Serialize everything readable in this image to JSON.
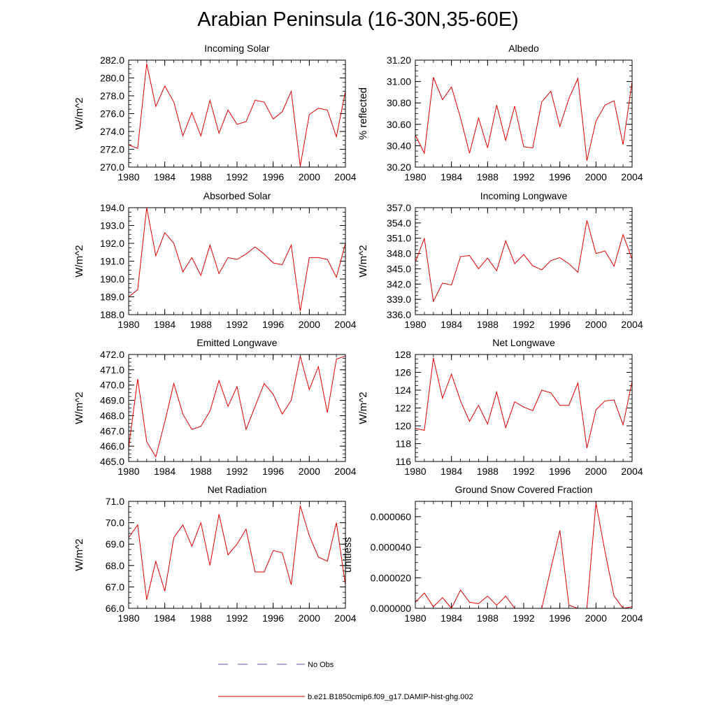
{
  "title": "Arabian Peninsula (16-30N,35-60E)",
  "series_name": "b.e21.B1850cmip6.f09_g17.DAMIP-hist-ghg.002",
  "obs_label": "No Obs",
  "series_color": "#e00000",
  "obs_color": "#5a5ad0",
  "chart_data": [
    {
      "type": "line",
      "title": "Incoming Solar",
      "ylabel": "W/m^2",
      "x": [
        1980,
        1981,
        1982,
        1983,
        1984,
        1985,
        1986,
        1987,
        1988,
        1989,
        1990,
        1991,
        1992,
        1993,
        1994,
        1995,
        1996,
        1997,
        1998,
        1999,
        2000,
        2001,
        2002,
        2003,
        2004
      ],
      "values": [
        272.5,
        272.1,
        281.6,
        276.8,
        279.1,
        277.3,
        273.5,
        276.1,
        273.5,
        277.5,
        273.8,
        276.4,
        274.8,
        275.1,
        277.5,
        277.3,
        275.4,
        276.2,
        278.5,
        270.1,
        275.9,
        276.6,
        276.4,
        273.4,
        278.5
      ],
      "xlim": [
        1980,
        2004
      ],
      "ylim": [
        270.0,
        282.0
      ],
      "xticks": [
        "1980",
        "1984",
        "1988",
        "1992",
        "1996",
        "2000",
        "2004"
      ],
      "yticks": [
        "270.0",
        "272.0",
        "274.0",
        "276.0",
        "278.0",
        "280.0",
        "282.0"
      ]
    },
    {
      "type": "line",
      "title": "Albedo",
      "ylabel": "% reflected",
      "x": [
        1980,
        1981,
        1982,
        1983,
        1984,
        1985,
        1986,
        1987,
        1988,
        1989,
        1990,
        1991,
        1992,
        1993,
        1994,
        1995,
        1996,
        1997,
        1998,
        1999,
        2000,
        2001,
        2002,
        2003,
        2004
      ],
      "values": [
        30.5,
        30.33,
        31.04,
        30.83,
        30.95,
        30.66,
        30.33,
        30.66,
        30.38,
        30.78,
        30.45,
        30.77,
        30.39,
        30.38,
        30.81,
        30.91,
        30.58,
        30.84,
        31.03,
        30.26,
        30.63,
        30.78,
        30.82,
        30.41,
        31.0
      ],
      "xlim": [
        1980,
        2004
      ],
      "ylim": [
        30.2,
        31.2
      ],
      "xticks": [
        "1980",
        "1984",
        "1988",
        "1992",
        "1996",
        "2000",
        "2004"
      ],
      "yticks": [
        "30.20",
        "30.40",
        "30.60",
        "30.80",
        "31.00",
        "31.20"
      ]
    },
    {
      "type": "line",
      "title": "Absorbed Solar",
      "ylabel": "W/m^2",
      "x": [
        1980,
        1981,
        1982,
        1983,
        1984,
        1985,
        1986,
        1987,
        1988,
        1989,
        1990,
        1991,
        1992,
        1993,
        1994,
        1995,
        1996,
        1997,
        1998,
        1999,
        2000,
        2001,
        2002,
        2003,
        2004
      ],
      "values": [
        189.0,
        189.4,
        194.0,
        191.3,
        192.6,
        192.0,
        190.4,
        191.2,
        190.2,
        191.9,
        190.3,
        191.2,
        191.1,
        191.4,
        191.8,
        191.4,
        190.9,
        190.8,
        191.9,
        188.2,
        191.2,
        191.2,
        191.1,
        190.1,
        192.0
      ],
      "xlim": [
        1980,
        2004
      ],
      "ylim": [
        188.0,
        194.0
      ],
      "xticks": [
        "1980",
        "1984",
        "1988",
        "1992",
        "1996",
        "2000",
        "2004"
      ],
      "yticks": [
        "188.0",
        "189.0",
        "190.0",
        "191.0",
        "192.0",
        "193.0",
        "194.0"
      ]
    },
    {
      "type": "line",
      "title": "Incoming Longwave",
      "ylabel": "W/m^2",
      "x": [
        1980,
        1981,
        1982,
        1983,
        1984,
        1985,
        1986,
        1987,
        1988,
        1989,
        1990,
        1991,
        1992,
        1993,
        1994,
        1995,
        1996,
        1997,
        1998,
        1999,
        2000,
        2001,
        2002,
        2003,
        2004
      ],
      "values": [
        346.3,
        351.0,
        338.6,
        342.2,
        341.8,
        347.4,
        347.6,
        345.0,
        347.1,
        344.6,
        350.5,
        346.0,
        347.8,
        345.6,
        344.8,
        346.6,
        347.2,
        346.0,
        344.3,
        354.5,
        348.0,
        348.5,
        345.5,
        351.7,
        346.9
      ],
      "xlim": [
        1980,
        2004
      ],
      "ylim": [
        336.0,
        357.0
      ],
      "xticks": [
        "1980",
        "1984",
        "1988",
        "1992",
        "1996",
        "2000",
        "2004"
      ],
      "yticks": [
        "336.0",
        "339.0",
        "342.0",
        "345.0",
        "348.0",
        "351.0",
        "354.0",
        "357.0"
      ]
    },
    {
      "type": "line",
      "title": "Emitted Longwave",
      "ylabel": "W/m^2",
      "x": [
        1980,
        1981,
        1982,
        1983,
        1984,
        1985,
        1986,
        1987,
        1988,
        1989,
        1990,
        1991,
        1992,
        1993,
        1994,
        1995,
        1996,
        1997,
        1998,
        1999,
        2000,
        2001,
        2002,
        2003,
        2004
      ],
      "values": [
        465.9,
        470.4,
        466.3,
        465.3,
        467.6,
        470.1,
        468.1,
        467.1,
        467.3,
        468.3,
        470.3,
        468.6,
        469.9,
        467.1,
        468.6,
        470.1,
        469.4,
        468.1,
        469.0,
        471.9,
        469.7,
        471.2,
        468.2,
        471.7,
        471.9
      ],
      "xlim": [
        1980,
        2004
      ],
      "ylim": [
        465.0,
        472.0
      ],
      "xticks": [
        "1980",
        "1984",
        "1988",
        "1992",
        "1996",
        "2000",
        "2004"
      ],
      "yticks": [
        "465.0",
        "466.0",
        "467.0",
        "468.0",
        "469.0",
        "470.0",
        "471.0",
        "472.0"
      ]
    },
    {
      "type": "line",
      "title": "Net Longwave",
      "ylabel": "W/m^2",
      "x": [
        1980,
        1981,
        1982,
        1983,
        1984,
        1985,
        1986,
        1987,
        1988,
        1989,
        1990,
        1991,
        1992,
        1993,
        1994,
        1995,
        1996,
        1997,
        1998,
        1999,
        2000,
        2001,
        2002,
        2003,
        2004
      ],
      "values": [
        119.7,
        119.5,
        127.6,
        123.1,
        125.8,
        122.8,
        120.5,
        122.3,
        120.2,
        123.8,
        119.8,
        122.7,
        122.1,
        121.7,
        124.0,
        123.7,
        122.3,
        122.3,
        124.8,
        117.5,
        121.8,
        122.8,
        122.9,
        120.1,
        125.0
      ],
      "xlim": [
        1980,
        2004
      ],
      "ylim": [
        116,
        128
      ],
      "xticks": [
        "1980",
        "1984",
        "1988",
        "1992",
        "1996",
        "2000",
        "2004"
      ],
      "yticks": [
        "116",
        "118",
        "120",
        "122",
        "124",
        "126",
        "128"
      ]
    },
    {
      "type": "line",
      "title": "Net Radiation",
      "ylabel": "W/m^2",
      "x": [
        1980,
        1981,
        1982,
        1983,
        1984,
        1985,
        1986,
        1987,
        1988,
        1989,
        1990,
        1991,
        1992,
        1993,
        1994,
        1995,
        1996,
        1997,
        1998,
        1999,
        2000,
        2001,
        2002,
        2003,
        2004
      ],
      "values": [
        69.3,
        69.9,
        66.4,
        68.2,
        66.8,
        69.3,
        69.9,
        68.9,
        70.0,
        68.0,
        70.4,
        68.5,
        69.0,
        69.7,
        67.7,
        67.7,
        68.7,
        68.6,
        67.1,
        70.8,
        69.4,
        68.4,
        68.2,
        70.0,
        67.1
      ],
      "xlim": [
        1980,
        2004
      ],
      "ylim": [
        66.0,
        71.0
      ],
      "xticks": [
        "1980",
        "1984",
        "1988",
        "1992",
        "1996",
        "2000",
        "2004"
      ],
      "yticks": [
        "66.0",
        "67.0",
        "68.0",
        "69.0",
        "70.0",
        "71.0"
      ]
    },
    {
      "type": "line",
      "title": "Ground Snow Covered Fraction",
      "ylabel": "unitless",
      "x": [
        1980,
        1981,
        1982,
        1983,
        1984,
        1985,
        1986,
        1987,
        1988,
        1989,
        1990,
        1991,
        1992,
        1993,
        1994,
        1995,
        1996,
        1997,
        1998,
        1999,
        2000,
        2001,
        2002,
        2003,
        2004
      ],
      "values": [
        4e-06,
        1e-05,
        1e-06,
        7e-06,
        0.0,
        1.2e-05,
        4e-06,
        3e-06,
        8e-06,
        2e-06,
        8e-06,
        0.0,
        0.0,
        0.0,
        0.0,
        2.6e-05,
        5.1e-05,
        2e-06,
        0.0,
        0.0,
        6.9e-05,
        3.7e-05,
        8e-06,
        0.0,
        1e-06
      ],
      "xlim": [
        1980,
        2004
      ],
      "ylim": [
        0.0,
        7e-05
      ],
      "xticks": [
        "1980",
        "1984",
        "1988",
        "1992",
        "1996",
        "2000",
        "2004"
      ],
      "yticks": [
        "0.000000",
        "0.000020",
        "0.000040",
        "0.000060"
      ]
    }
  ]
}
